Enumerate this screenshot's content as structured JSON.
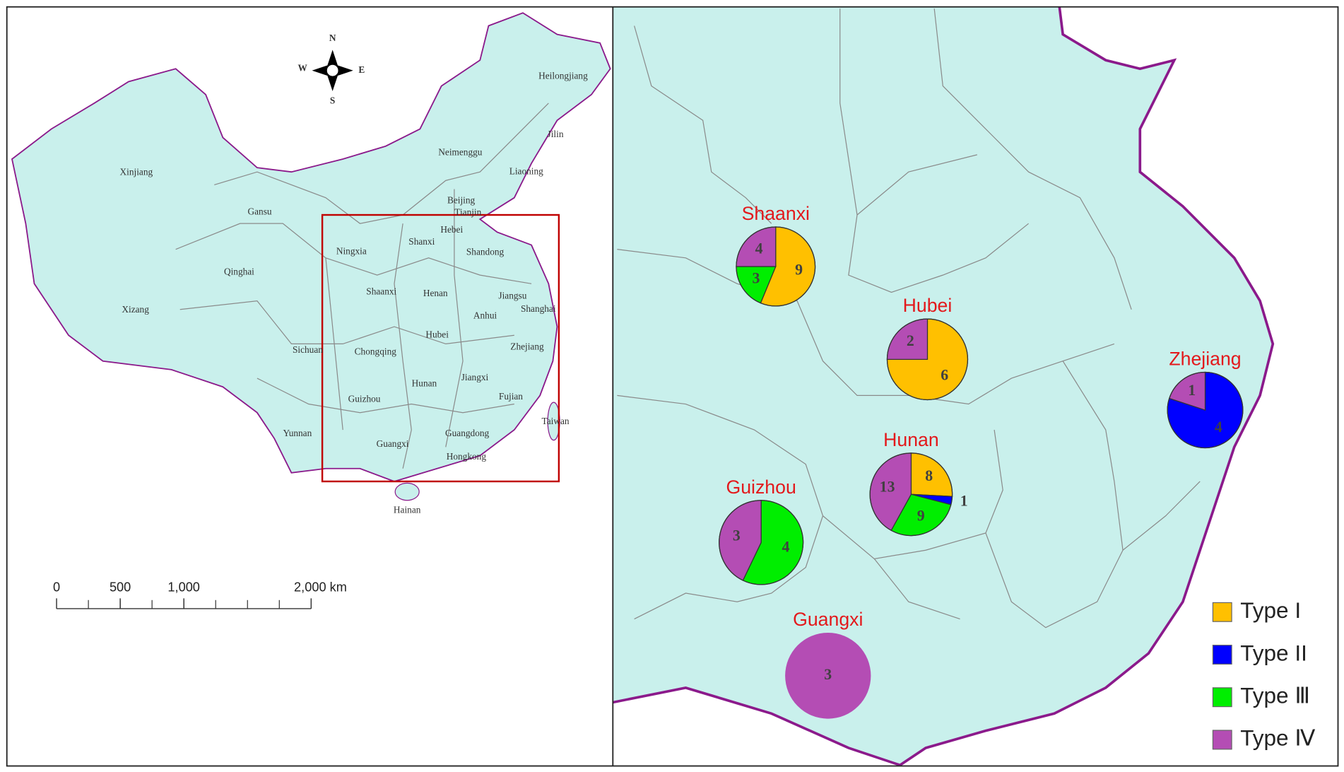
{
  "left_map": {
    "compass": {
      "n": "N",
      "s": "S",
      "e": "E",
      "w": "W"
    },
    "labels": [
      "Heilongjiang",
      "Jilin",
      "Neimenggu",
      "Liaoning",
      "Xinjiang",
      "Beijing",
      "Tianjin",
      "Gansu",
      "Hebei",
      "Shanxi",
      "Shandong",
      "Ningxia",
      "Qinghai",
      "Shaanxi",
      "Henan",
      "Jiangsu",
      "Shanghai",
      "Xizang",
      "Anhui",
      "Sichuan",
      "Chongqing",
      "Hubei",
      "Zhejiang",
      "Jiangxi",
      "Hunan",
      "Guizhou",
      "Fujian",
      "Taiwan",
      "Yunnan",
      "Guangdong",
      "Guangxi",
      "Hongkong",
      "Hainan"
    ],
    "scale_bar": {
      "ticks": [
        {
          "value": 0,
          "label": "0"
        },
        {
          "value": 500,
          "label": "500"
        },
        {
          "value": 1000,
          "label": "1,000"
        },
        {
          "value": 2000,
          "label": "2,000 km"
        }
      ]
    }
  },
  "right_map": {
    "types": [
      {
        "name": "Type I",
        "color": "#ffc000"
      },
      {
        "name": "Type II",
        "color": "#0000ff"
      },
      {
        "name": "Type Ⅲ",
        "color": "#00ee00"
      },
      {
        "name": "Type Ⅳ",
        "color": "#b44db4"
      }
    ],
    "pies": [
      {
        "name": "Shaanxi",
        "values": [
          9,
          null,
          3,
          4
        ]
      },
      {
        "name": "Hubei",
        "values": [
          6,
          null,
          null,
          2
        ]
      },
      {
        "name": "Zhejiang",
        "values": [
          null,
          4,
          null,
          1
        ]
      },
      {
        "name": "Hunan",
        "values": [
          8,
          1,
          9,
          13
        ]
      },
      {
        "name": "Guizhou",
        "values": [
          null,
          null,
          4,
          3
        ]
      },
      {
        "name": "Guangxi",
        "values": [
          null,
          null,
          null,
          3
        ]
      }
    ]
  }
}
